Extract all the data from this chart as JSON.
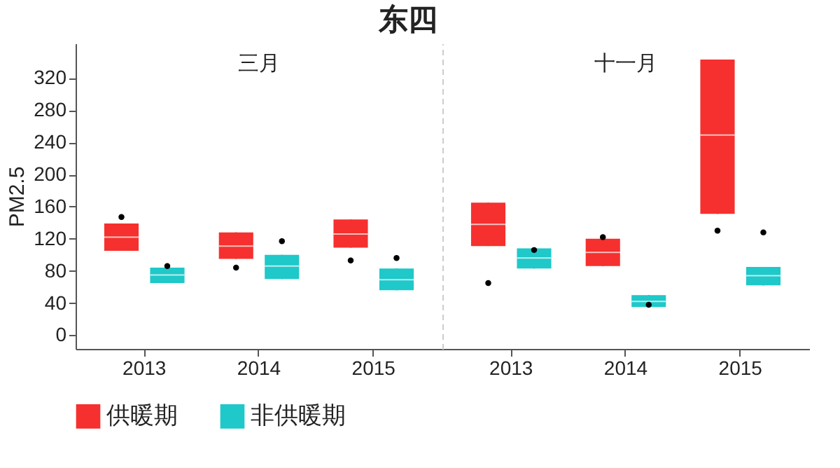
{
  "chart_data": [
    {
      "type": "box",
      "title": "东四",
      "subtitle": "三月",
      "ylabel": "PM2.5",
      "categories": [
        "2013",
        "2014",
        "2015"
      ],
      "ylim": [
        -17,
        363
      ],
      "yticks": [
        0,
        40,
        80,
        120,
        160,
        200,
        240,
        280,
        320
      ],
      "grid": false,
      "legend": "bottom",
      "series": [
        {
          "name": "供暖期",
          "color": "#f5302e",
          "boxes": [
            {
              "low": 105,
              "q1": 105,
              "median": 122,
              "q3": 139,
              "high": 139,
              "mean": 147
            },
            {
              "low": 95,
              "q1": 95,
              "median": 111,
              "q3": 128,
              "high": 128,
              "mean": 84
            },
            {
              "low": 109,
              "q1": 109,
              "median": 126,
              "q3": 144,
              "high": 144,
              "mean": 93
            }
          ]
        },
        {
          "name": "非供暖期",
          "color": "#1fc8c9",
          "boxes": [
            {
              "low": 65,
              "q1": 65,
              "median": 75,
              "q3": 84,
              "high": 84,
              "mean": 86
            },
            {
              "low": 70,
              "q1": 70,
              "median": 86,
              "q3": 100,
              "high": 100,
              "mean": 117
            },
            {
              "low": 56,
              "q1": 56,
              "median": 69,
              "q3": 83,
              "high": 83,
              "mean": 96
            }
          ]
        }
      ]
    },
    {
      "type": "box",
      "subtitle": "十一月",
      "categories": [
        "2013",
        "2014",
        "2015"
      ],
      "ylim": [
        -17,
        363
      ],
      "grid": false,
      "legend": "bottom",
      "tick_labels": "x",
      "series": [
        {
          "name": "非供暖期",
          "color": "#1fc8c9",
          "boxes": [
            {
              "low": 83,
              "q1": 83,
              "median": 96,
              "q3": 108,
              "high": 108,
              "mean": 106
            },
            {
              "low": 35,
              "q1": 35,
              "median": 42,
              "q3": 50,
              "high": 50,
              "mean": 38
            },
            {
              "low": 62,
              "q1": 62,
              "median": 74,
              "q3": 85,
              "high": 85,
              "mean": 128
            }
          ]
        },
        {
          "name": "供暖期",
          "color": "#f5302e",
          "boxes": [
            {
              "low": 111,
              "q1": 111,
              "median": 138,
              "q3": 165,
              "high": 165,
              "mean": 65
            },
            {
              "low": 86,
              "q1": 86,
              "median": 103,
              "q3": 120,
              "high": 120,
              "mean": 122
            },
            {
              "low": 151,
              "q1": 151,
              "median": 249,
              "q3": 343,
              "high": 343,
              "mean": 130
            }
          ]
        }
      ]
    }
  ]
}
